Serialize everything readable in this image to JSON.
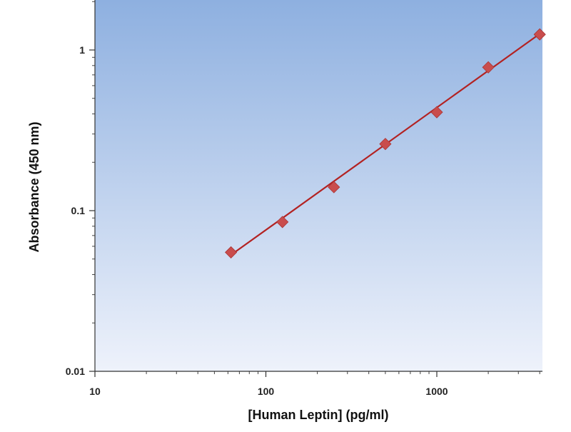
{
  "chart_data": {
    "type": "scatter",
    "title": "",
    "xlabel": "[Human Leptin] (pg/ml)",
    "ylabel": "Absorbance (450 nm)",
    "x_scale": "log",
    "y_scale": "log",
    "xlim": [
      10,
      4000
    ],
    "ylim": [
      0.01,
      2
    ],
    "x_ticks": [
      {
        "value": 10,
        "label": "10"
      },
      {
        "value": 100,
        "label": "100"
      },
      {
        "value": 1000,
        "label": "1000"
      }
    ],
    "y_ticks": [
      {
        "value": 0.01,
        "label": "0.01"
      },
      {
        "value": 0.1,
        "label": "0.1"
      },
      {
        "value": 1,
        "label": "1"
      }
    ],
    "grid": false,
    "legend": "none",
    "series": [
      {
        "x": [
          62.5,
          125,
          250,
          500,
          1000,
          2000,
          4000
        ],
        "y": [
          0.055,
          0.085,
          0.14,
          0.26,
          0.41,
          0.78,
          1.25
        ]
      }
    ],
    "fit_line": {
      "x": [
        62.5,
        4000
      ],
      "y": [
        0.053,
        1.26
      ]
    },
    "colors": {
      "plot_bg_top": "#8eb0e0",
      "plot_bg_bottom": "#eef2fb",
      "line": "#b32222",
      "marker": "#c94d4d"
    }
  }
}
